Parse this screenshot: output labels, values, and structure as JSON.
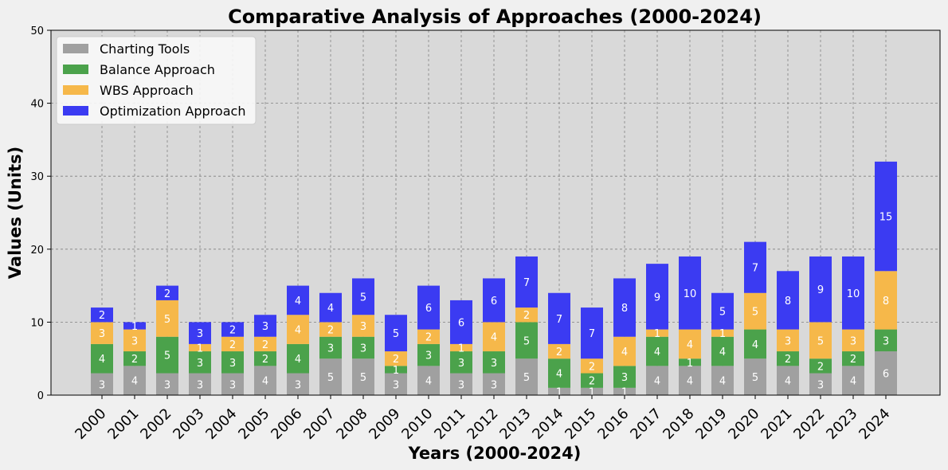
{
  "chart_data": {
    "type": "bar",
    "stacked": true,
    "title": "Comparative Analysis of Approaches (2000-2024)",
    "xlabel": "Years (2000-2024)",
    "ylabel": "Values (Units)",
    "ylim": [
      0,
      50
    ],
    "yticks": [
      0,
      10,
      20,
      30,
      40,
      50
    ],
    "grid": true,
    "legend_position": "top-left",
    "categories": [
      "2000",
      "2001",
      "2002",
      "2003",
      "2004",
      "2005",
      "2006",
      "2007",
      "2008",
      "2009",
      "2010",
      "2011",
      "2012",
      "2013",
      "2014",
      "2015",
      "2016",
      "2017",
      "2018",
      "2019",
      "2020",
      "2021",
      "2022",
      "2023",
      "2024"
    ],
    "series": [
      {
        "name": "Charting Tools",
        "color": "#a0a0a0",
        "values": [
          3,
          4,
          3,
          3,
          3,
          4,
          3,
          5,
          5,
          3,
          4,
          3,
          3,
          5,
          1,
          1,
          1,
          4,
          4,
          4,
          5,
          4,
          3,
          4,
          6
        ]
      },
      {
        "name": "Balance Approach",
        "color": "#4ba24b",
        "values": [
          4,
          2,
          5,
          3,
          3,
          2,
          4,
          3,
          3,
          1,
          3,
          3,
          3,
          5,
          4,
          2,
          3,
          4,
          1,
          4,
          4,
          2,
          2,
          2,
          3
        ]
      },
      {
        "name": "WBS Approach",
        "color": "#f6b84a",
        "values": [
          3,
          3,
          5,
          1,
          2,
          2,
          4,
          2,
          3,
          2,
          2,
          1,
          4,
          2,
          2,
          2,
          4,
          1,
          4,
          1,
          5,
          3,
          5,
          3,
          8
        ]
      },
      {
        "name": "Optimization Approach",
        "color": "#3b3bf2",
        "values": [
          2,
          1,
          2,
          3,
          2,
          3,
          4,
          4,
          5,
          5,
          6,
          6,
          6,
          7,
          7,
          7,
          8,
          9,
          10,
          5,
          7,
          8,
          9,
          10,
          15
        ]
      }
    ]
  }
}
